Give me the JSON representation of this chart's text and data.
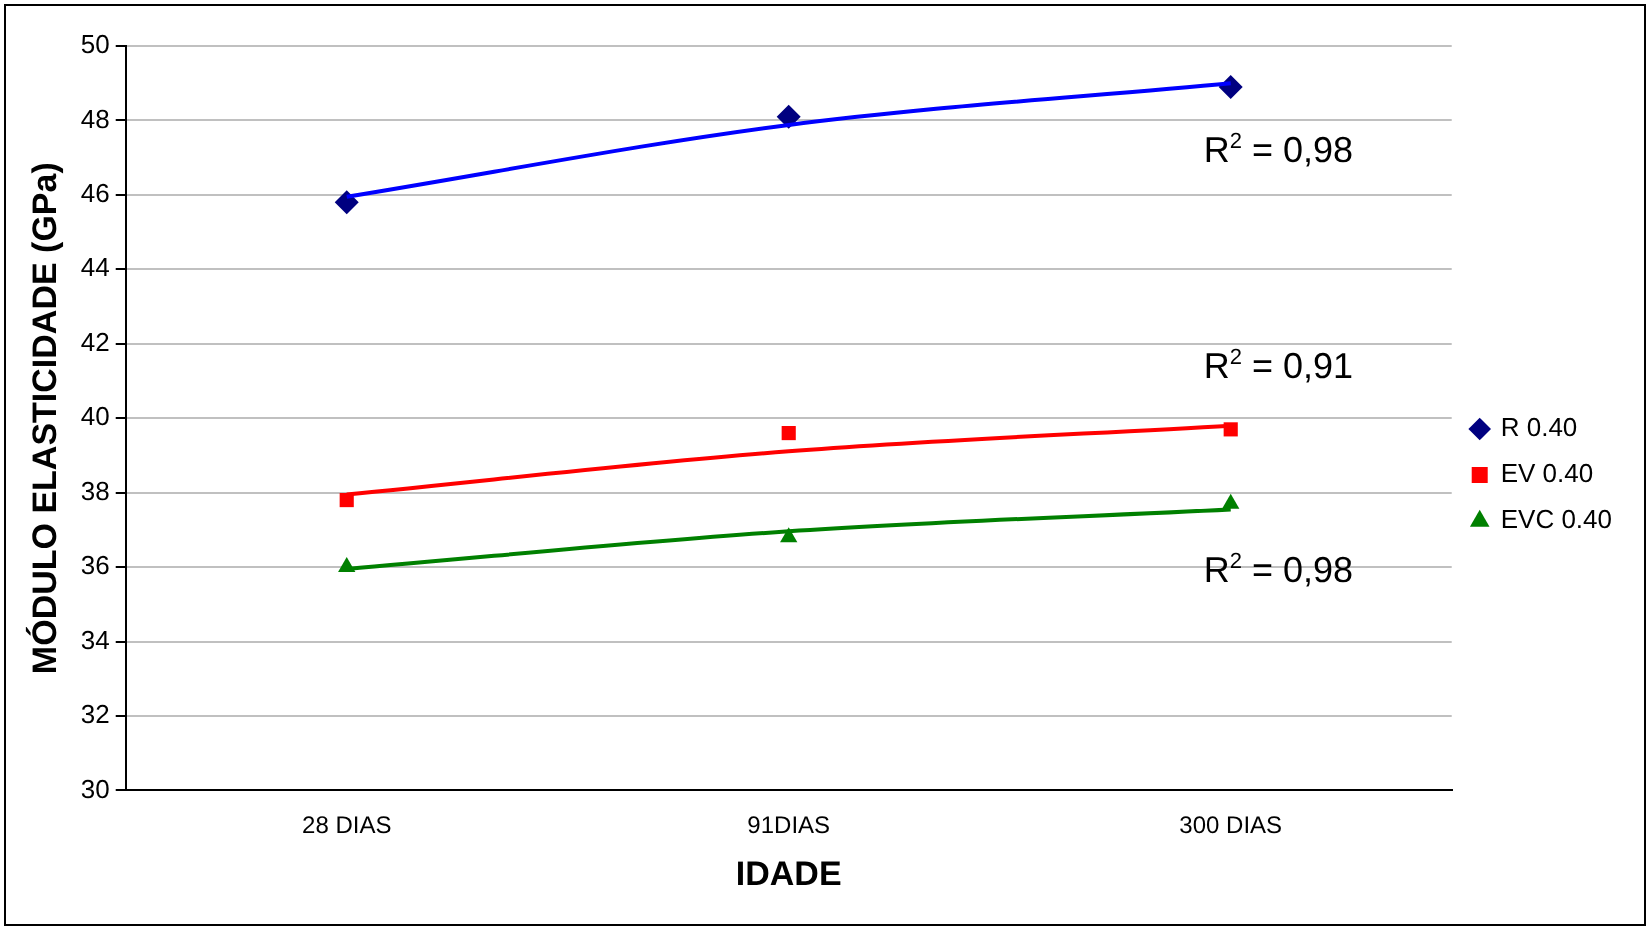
{
  "chart_data": {
    "type": "line",
    "xlabel": "IDADE",
    "ylabel": "MÓDULO ELASTICIDADE (GPa)",
    "categories": [
      "28 DIAS",
      "91DIAS",
      "300 DIAS"
    ],
    "ylim": [
      30,
      50
    ],
    "yticks": [
      30,
      32,
      34,
      36,
      38,
      40,
      42,
      44,
      46,
      48,
      50
    ],
    "grid": "y",
    "legend": "right",
    "series": [
      {
        "type": "line",
        "color": "#0000ff",
        "marker": "none",
        "values": [
          45.95,
          47.88,
          49.0
        ]
      },
      {
        "type": "line",
        "color": "#ff0000",
        "marker": "none",
        "values": [
          37.95,
          39.11,
          39.8
        ]
      },
      {
        "type": "line",
        "color": "#008000",
        "marker": "none",
        "values": [
          35.95,
          36.96,
          37.55
        ]
      },
      {
        "type": "scatter",
        "name": "R 0.40",
        "color": "#000080",
        "marker": "diamond",
        "values": [
          45.8,
          48.1,
          48.9
        ]
      },
      {
        "type": "scatter",
        "name": "EV 0.40",
        "color": "#ff0000",
        "marker": "square",
        "values": [
          37.8,
          39.6,
          39.7
        ]
      },
      {
        "type": "scatter",
        "name": "EVC 0.40",
        "color": "#008000",
        "marker": "triangle",
        "values": [
          36.0,
          36.8,
          37.7
        ]
      }
    ],
    "annotations": [
      "R$^{2}$ = 0,98",
      "R$^{2}$ = 0,91",
      "R$^{2}$ = 0,98"
    ]
  }
}
